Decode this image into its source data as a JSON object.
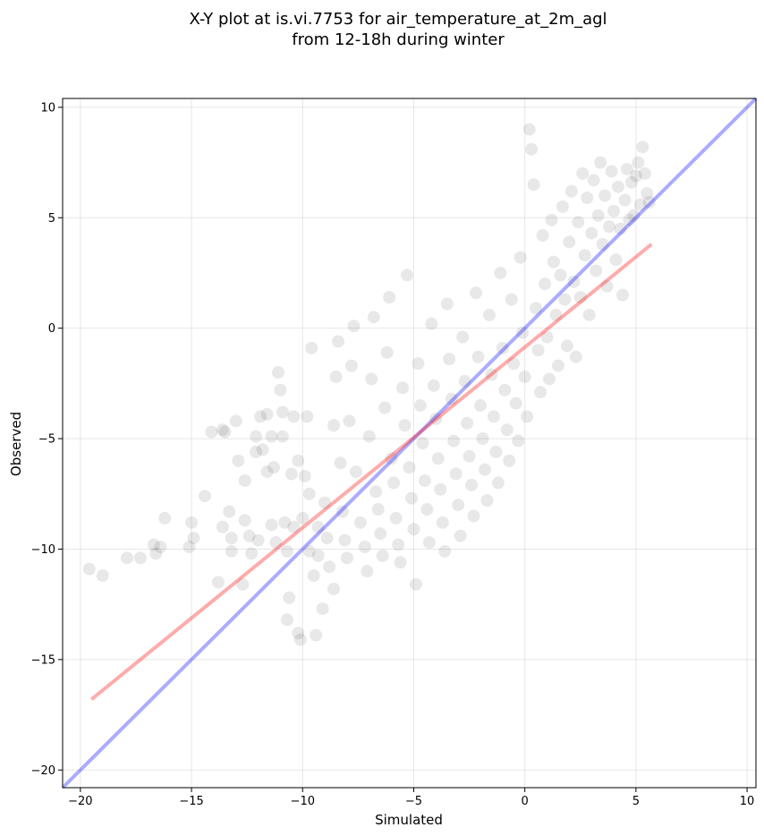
{
  "chart_data": {
    "type": "scatter",
    "title_lines": [
      "X-Y plot at is.vi.7753 for air_temperature_at_2m_agl",
      "from 12-18h during winter"
    ],
    "xlabel": "Simulated",
    "ylabel": "Observed",
    "xlim": [
      -20.8,
      10.4
    ],
    "ylim": [
      -20.8,
      10.4
    ],
    "xticks": [
      -20,
      -15,
      -10,
      -5,
      0,
      5,
      10
    ],
    "yticks": [
      -20,
      -15,
      -10,
      -5,
      0,
      5,
      10
    ],
    "xtick_labels": [
      "−20",
      "−15",
      "−10",
      "−5",
      "0",
      "5",
      "10"
    ],
    "ytick_labels": [
      "−20",
      "−15",
      "−10",
      "−5",
      "0",
      "5",
      "10"
    ],
    "grid": true,
    "point_color": "#000000",
    "point_opacity": 0.09,
    "identity_line": {
      "color": "#0000ff",
      "opacity": 0.33,
      "x": [
        -20.8,
        10.4
      ],
      "y": [
        -20.8,
        10.4
      ]
    },
    "fit_line": {
      "color": "#ff0000",
      "opacity": 0.33,
      "x": [
        -19.5,
        5.7
      ],
      "y": [
        -16.8,
        3.8
      ]
    },
    "points": [
      [
        -19.6,
        -10.9
      ],
      [
        -19.0,
        -11.2
      ],
      [
        -17.9,
        -10.4
      ],
      [
        -17.3,
        -10.4
      ],
      [
        -16.7,
        -9.8
      ],
      [
        -16.6,
        -10.2
      ],
      [
        -16.4,
        -9.9
      ],
      [
        -16.2,
        -8.6
      ],
      [
        -15.1,
        -9.9
      ],
      [
        -15.0,
        -8.8
      ],
      [
        -14.9,
        -9.5
      ],
      [
        -14.4,
        -7.6
      ],
      [
        -14.1,
        -4.7
      ],
      [
        -13.8,
        -11.5
      ],
      [
        -13.6,
        -9.0
      ],
      [
        -13.6,
        -4.6
      ],
      [
        -13.5,
        -4.7
      ],
      [
        -13.3,
        -8.3
      ],
      [
        -13.2,
        -10.1
      ],
      [
        -13.2,
        -9.5
      ],
      [
        -13.0,
        -4.2
      ],
      [
        -12.9,
        -6.0
      ],
      [
        -12.7,
        -11.6
      ],
      [
        -12.6,
        -8.7
      ],
      [
        -12.6,
        -6.9
      ],
      [
        -12.4,
        -9.4
      ],
      [
        -12.3,
        -10.2
      ],
      [
        -12.1,
        -4.9
      ],
      [
        -12.1,
        -5.6
      ],
      [
        -12.0,
        -9.6
      ],
      [
        -11.9,
        -4.0
      ],
      [
        -11.8,
        -5.5
      ],
      [
        -11.6,
        -3.9
      ],
      [
        -11.6,
        -6.5
      ],
      [
        -11.4,
        -8.9
      ],
      [
        -11.4,
        -4.9
      ],
      [
        -11.3,
        -6.3
      ],
      [
        -11.2,
        -9.7
      ],
      [
        -11.1,
        -2.0
      ],
      [
        -11.0,
        -2.8
      ],
      [
        -10.9,
        -4.9
      ],
      [
        -10.9,
        -3.8
      ],
      [
        -10.8,
        -8.8
      ],
      [
        -10.7,
        -13.2
      ],
      [
        -10.7,
        -10.1
      ],
      [
        -10.6,
        -12.2
      ],
      [
        -10.5,
        -6.6
      ],
      [
        -10.4,
        -4.0
      ],
      [
        -10.4,
        -9.0
      ],
      [
        -10.2,
        -13.8
      ],
      [
        -10.2,
        -6.0
      ],
      [
        -10.1,
        -14.1
      ],
      [
        -10.0,
        -8.6
      ],
      [
        -9.9,
        -6.7
      ],
      [
        -9.8,
        -4.0
      ],
      [
        -9.7,
        -7.5
      ],
      [
        -9.7,
        -10.1
      ],
      [
        -9.6,
        -0.9
      ],
      [
        -9.5,
        -11.2
      ],
      [
        -9.4,
        -13.9
      ],
      [
        -9.3,
        -9.0
      ],
      [
        -9.3,
        -10.3
      ],
      [
        -9.1,
        -12.7
      ],
      [
        -9.0,
        -7.9
      ],
      [
        -8.9,
        -9.5
      ],
      [
        -8.8,
        -10.8
      ],
      [
        -8.6,
        -11.8
      ],
      [
        -8.6,
        -4.4
      ],
      [
        -8.5,
        -2.2
      ],
      [
        -8.4,
        -0.6
      ],
      [
        -8.3,
        -6.1
      ],
      [
        -8.2,
        -8.3
      ],
      [
        -8.1,
        -9.6
      ],
      [
        -8.0,
        -10.4
      ],
      [
        -7.9,
        -4.2
      ],
      [
        -7.8,
        -1.7
      ],
      [
        -7.7,
        0.1
      ],
      [
        -7.6,
        -6.5
      ],
      [
        -7.4,
        -8.8
      ],
      [
        -7.2,
        -9.9
      ],
      [
        -7.1,
        -11.0
      ],
      [
        -7.0,
        -4.9
      ],
      [
        -6.9,
        -2.3
      ],
      [
        -6.8,
        0.5
      ],
      [
        -6.7,
        -7.4
      ],
      [
        -6.6,
        -8.2
      ],
      [
        -6.5,
        -9.3
      ],
      [
        -6.4,
        -10.3
      ],
      [
        -6.3,
        -3.6
      ],
      [
        -6.2,
        -1.1
      ],
      [
        -6.1,
        1.4
      ],
      [
        -6.0,
        -5.9
      ],
      [
        -5.9,
        -7.0
      ],
      [
        -5.8,
        -8.6
      ],
      [
        -5.7,
        -9.8
      ],
      [
        -5.6,
        -10.6
      ],
      [
        -5.5,
        -2.7
      ],
      [
        -5.4,
        -4.4
      ],
      [
        -5.3,
        2.4
      ],
      [
        -5.2,
        -6.3
      ],
      [
        -5.1,
        -7.7
      ],
      [
        -5.0,
        -9.1
      ],
      [
        -4.9,
        -11.6
      ],
      [
        -4.8,
        -1.6
      ],
      [
        -4.7,
        -3.5
      ],
      [
        -4.6,
        -5.2
      ],
      [
        -4.5,
        -6.9
      ],
      [
        -4.4,
        -8.2
      ],
      [
        -4.3,
        -9.7
      ],
      [
        -4.2,
        0.2
      ],
      [
        -4.1,
        -2.6
      ],
      [
        -4.0,
        -4.1
      ],
      [
        -3.9,
        -5.9
      ],
      [
        -3.8,
        -7.3
      ],
      [
        -3.7,
        -8.8
      ],
      [
        -3.6,
        -10.1
      ],
      [
        -3.5,
        1.1
      ],
      [
        -3.4,
        -1.4
      ],
      [
        -3.3,
        -3.2
      ],
      [
        -3.2,
        -5.1
      ],
      [
        -3.1,
        -6.6
      ],
      [
        -3.0,
        -8.0
      ],
      [
        -2.9,
        -9.4
      ],
      [
        -2.8,
        -0.4
      ],
      [
        -2.7,
        -2.4
      ],
      [
        -2.6,
        -4.3
      ],
      [
        -2.5,
        -5.8
      ],
      [
        -2.4,
        -7.1
      ],
      [
        -2.3,
        -8.5
      ],
      [
        -2.2,
        1.6
      ],
      [
        -2.1,
        -1.3
      ],
      [
        -2.0,
        -3.5
      ],
      [
        -1.9,
        -5.0
      ],
      [
        -1.8,
        -6.4
      ],
      [
        -1.7,
        -7.8
      ],
      [
        -1.6,
        0.6
      ],
      [
        -1.5,
        -2.1
      ],
      [
        -1.4,
        -4.0
      ],
      [
        -1.3,
        -5.6
      ],
      [
        -1.2,
        -7.0
      ],
      [
        -1.1,
        2.5
      ],
      [
        -1.0,
        -0.9
      ],
      [
        -0.9,
        -2.8
      ],
      [
        -0.8,
        -4.6
      ],
      [
        -0.7,
        -6.0
      ],
      [
        -0.6,
        1.3
      ],
      [
        -0.5,
        -1.6
      ],
      [
        -0.4,
        -3.4
      ],
      [
        -0.3,
        -5.1
      ],
      [
        -0.2,
        3.2
      ],
      [
        -0.1,
        -0.2
      ],
      [
        0.0,
        -2.2
      ],
      [
        0.1,
        -4.0
      ],
      [
        0.2,
        9.0
      ],
      [
        0.3,
        8.1
      ],
      [
        0.4,
        6.5
      ],
      [
        0.5,
        0.9
      ],
      [
        0.6,
        -1.0
      ],
      [
        0.7,
        -2.9
      ],
      [
        0.8,
        4.2
      ],
      [
        0.9,
        2.0
      ],
      [
        1.0,
        -0.4
      ],
      [
        1.1,
        -2.3
      ],
      [
        1.2,
        4.9
      ],
      [
        1.3,
        3.0
      ],
      [
        1.4,
        0.6
      ],
      [
        1.5,
        -1.7
      ],
      [
        1.6,
        2.4
      ],
      [
        1.7,
        5.5
      ],
      [
        1.8,
        1.3
      ],
      [
        1.9,
        -0.8
      ],
      [
        2.0,
        3.9
      ],
      [
        2.1,
        6.2
      ],
      [
        2.2,
        2.1
      ],
      [
        2.3,
        -1.3
      ],
      [
        2.4,
        4.8
      ],
      [
        2.5,
        1.4
      ],
      [
        2.6,
        7.0
      ],
      [
        2.7,
        3.3
      ],
      [
        2.8,
        5.9
      ],
      [
        2.9,
        0.6
      ],
      [
        3.0,
        4.3
      ],
      [
        3.1,
        6.7
      ],
      [
        3.2,
        2.6
      ],
      [
        3.3,
        5.1
      ],
      [
        3.4,
        7.5
      ],
      [
        3.5,
        3.8
      ],
      [
        3.6,
        6.0
      ],
      [
        3.7,
        1.9
      ],
      [
        3.8,
        4.6
      ],
      [
        3.9,
        7.1
      ],
      [
        4.0,
        5.3
      ],
      [
        4.1,
        3.1
      ],
      [
        4.2,
        6.4
      ],
      [
        4.3,
        4.5
      ],
      [
        4.4,
        1.5
      ],
      [
        4.5,
        5.8
      ],
      [
        4.6,
        7.2
      ],
      [
        4.7,
        4.9
      ],
      [
        4.8,
        6.6
      ],
      [
        4.9,
        5.1
      ],
      [
        5.0,
        6.9
      ],
      [
        5.1,
        7.5
      ],
      [
        5.2,
        5.6
      ],
      [
        5.3,
        8.2
      ],
      [
        5.4,
        7.0
      ],
      [
        5.5,
        6.1
      ],
      [
        5.6,
        5.7
      ]
    ]
  }
}
